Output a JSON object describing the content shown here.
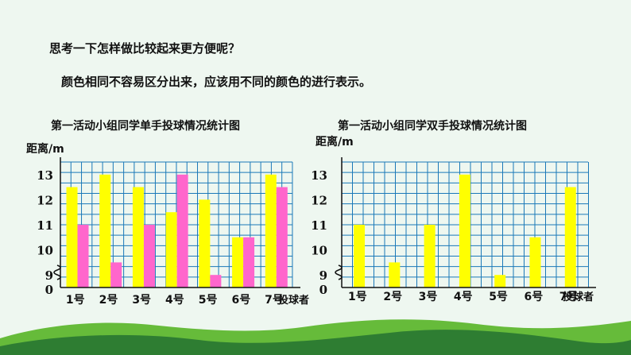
{
  "text": {
    "line1": "思考一下怎样做比较起来更方便呢？",
    "line2": "颜色相同不容易区分出来，应该用不同的颜色的进行表示。"
  },
  "colors": {
    "grid": "#1a78b8",
    "yellow": "#ffff00",
    "pink": "#ff66cc",
    "hill_dark": "#2e7d32",
    "hill_light": "#66bb3a",
    "background": "#eef7f0"
  },
  "chart_data": [
    {
      "type": "bar",
      "title": "第一活动小组同学单手投球情况统计图",
      "ylabel": "距离/m",
      "xlabel": "投球者",
      "categories": [
        "1号",
        "2号",
        "3号",
        "4号",
        "5号",
        "6号",
        "7号"
      ],
      "yticks": [
        "0",
        "9",
        "10",
        "11",
        "12",
        "13"
      ],
      "axis_break": true,
      "ylim": [
        8.5,
        13.5
      ],
      "grid": true,
      "series": [
        {
          "color": "yellow",
          "values": [
            12.5,
            13,
            12.5,
            11.5,
            12,
            10.5,
            13
          ]
        },
        {
          "color": "pink",
          "values": [
            11,
            9.5,
            11,
            13,
            9,
            10.5,
            12.5
          ]
        }
      ]
    },
    {
      "type": "bar",
      "title": "第一活动小组同学双手投球情况统计图",
      "ylabel": "距离/m",
      "xlabel": "投球者",
      "categories": [
        "1号",
        "2号",
        "3号",
        "4号",
        "5号",
        "6号",
        "7号"
      ],
      "yticks": [
        "0",
        "9",
        "10",
        "11",
        "12",
        "13"
      ],
      "axis_break": true,
      "ylim": [
        8.5,
        13.5
      ],
      "grid": true,
      "series": [
        {
          "color": "yellow",
          "values": [
            11,
            9.5,
            11,
            13,
            9,
            10.5,
            12.5
          ]
        }
      ]
    }
  ]
}
